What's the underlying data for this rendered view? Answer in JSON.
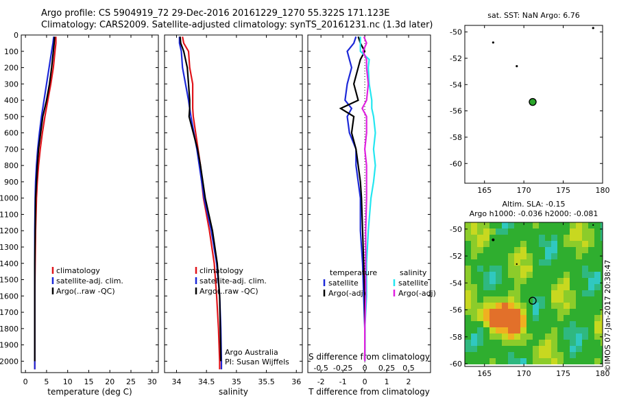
{
  "header": {
    "line1": "Argo profile: CS 5904919_72 29-Dec-2016 20161229_1270 55.322S 171.123E",
    "line2": "Climatology: CARS2009. Satellite-adjusted climatology: synTS_20161231.nc (1.3d later)"
  },
  "credit": "©IMOS 07-Jan-2017 20:38:47",
  "colors": {
    "climatology": "#e0141a",
    "satellite": "#1c28d8",
    "argo": "#000000",
    "satellite_salinity": "#22e6f0",
    "argo_salinity": "#e020e0"
  },
  "depth_ticks": [
    "0",
    "100",
    "200",
    "300",
    "400",
    "500",
    "600",
    "700",
    "800",
    "900",
    "1000",
    "1100",
    "1200",
    "1300",
    "1400",
    "1500",
    "1600",
    "1700",
    "1800",
    "1900",
    "2000"
  ],
  "chart_data": [
    {
      "type": "line",
      "id": "temperature",
      "xlabel": "temperature (deg C)",
      "ylabel": "",
      "xlim": [
        -1,
        31.5
      ],
      "ylim": [
        2070,
        0
      ],
      "x_ticks": [
        "0",
        "5",
        "10",
        "15",
        "20",
        "25",
        "30"
      ],
      "x_tick_values": [
        0,
        5,
        10,
        15,
        20,
        25,
        30
      ],
      "legend": [
        "climatology",
        "satellite-adj. clim.",
        "Argo(..raw -QC)"
      ],
      "depth": [
        10,
        50,
        100,
        200,
        300,
        400,
        500,
        600,
        700,
        800,
        900,
        1000,
        1200,
        1400,
        1600,
        1800,
        2000,
        2050
      ],
      "series": [
        {
          "name": "climatology",
          "color_key": "climatology",
          "values": [
            7.2,
            7.2,
            7.0,
            6.6,
            6.0,
            5.3,
            4.6,
            4.0,
            3.5,
            3.1,
            2.8,
            2.6,
            2.4,
            2.3,
            2.2,
            2.2,
            2.2,
            2.2
          ]
        },
        {
          "name": "satellite-adj. clim.",
          "color_key": "satellite",
          "values": [
            6.7,
            6.5,
            6.2,
            5.6,
            5.0,
            4.4,
            3.8,
            3.3,
            2.9,
            2.6,
            2.4,
            2.3,
            2.2,
            2.2,
            2.2,
            2.2,
            2.2,
            2.2
          ]
        },
        {
          "name": "Argo(..raw -QC)",
          "color_key": "argo",
          "values": [
            6.9,
            6.8,
            6.6,
            6.2,
            5.7,
            5.0,
            4.1,
            3.6,
            3.1,
            2.8,
            2.6,
            2.4,
            2.3,
            2.2,
            2.2,
            2.2,
            2.2,
            null
          ]
        }
      ]
    },
    {
      "type": "line",
      "id": "salinity",
      "xlabel": "salinity",
      "ylabel": "",
      "xlim": [
        33.8,
        36.1
      ],
      "ylim": [
        2070,
        0
      ],
      "x_ticks": [
        "34",
        "34.5",
        "35",
        "35.5",
        "36"
      ],
      "x_tick_values": [
        34,
        34.5,
        35,
        35.5,
        36
      ],
      "legend": [
        "climatology",
        "satellite-adj. clim.",
        "Argo(..raw -QC)"
      ],
      "annotation": [
        "Argo Australia",
        "PI: Susan Wijffels"
      ],
      "depth": [
        10,
        50,
        100,
        200,
        300,
        400,
        450,
        500,
        600,
        700,
        800,
        900,
        1000,
        1200,
        1400,
        1600,
        1800,
        2000,
        2050
      ],
      "series": [
        {
          "name": "climatology",
          "color_key": "climatology",
          "values": [
            34.1,
            34.12,
            34.2,
            34.22,
            34.27,
            34.27,
            34.27,
            34.28,
            34.32,
            34.36,
            34.4,
            34.42,
            34.45,
            34.55,
            34.63,
            34.67,
            34.7,
            34.72,
            34.72
          ]
        },
        {
          "name": "satellite-adj. clim.",
          "color_key": "satellite",
          "values": [
            34.05,
            34.05,
            34.08,
            34.1,
            34.15,
            34.2,
            34.22,
            34.24,
            34.29,
            34.34,
            34.38,
            34.42,
            34.46,
            34.58,
            34.67,
            34.72,
            34.74,
            34.75,
            34.75
          ]
        },
        {
          "name": "Argo(..raw -QC)",
          "color_key": "argo",
          "values": [
            34.06,
            34.07,
            34.12,
            34.18,
            34.2,
            34.22,
            34.22,
            34.21,
            34.28,
            34.35,
            34.4,
            34.44,
            34.48,
            34.6,
            34.68,
            34.72,
            34.73,
            34.74,
            null
          ]
        }
      ]
    },
    {
      "type": "line",
      "id": "differences",
      "xlabel": "T difference from climatology",
      "top_axis_label": "S difference from climatology",
      "xlim": [
        -2.6,
        3.0
      ],
      "ylim": [
        2070,
        0
      ],
      "x_ticks": [
        "-2",
        "-1",
        "0",
        "1",
        "2"
      ],
      "x_tick_values": [
        -2,
        -1,
        0,
        1,
        2
      ],
      "top_ticks": [
        "-0.5",
        "-0.25",
        "0",
        "0.25",
        "0.5"
      ],
      "legend_temperature": [
        "temperature",
        "satellite",
        "Argo(-adj)"
      ],
      "legend_salinity": [
        "salinity",
        "satellite",
        "Argo(-adj)"
      ],
      "depth": [
        10,
        50,
        100,
        150,
        200,
        300,
        400,
        450,
        500,
        600,
        700,
        800,
        900,
        1000,
        1200,
        1400,
        1600,
        1800,
        2000
      ],
      "series": [
        {
          "name": "temperature satellite",
          "color_key": "satellite",
          "values": [
            -0.4,
            -0.5,
            -0.8,
            -0.7,
            -0.6,
            -0.8,
            -0.9,
            -0.6,
            -0.8,
            -0.7,
            -0.4,
            -0.4,
            -0.3,
            -0.2,
            -0.2,
            -0.1,
            -0.05,
            0,
            0
          ]
        },
        {
          "name": "temperature Argo(-adj)",
          "color_key": "argo",
          "values": [
            -0.3,
            -0.2,
            0,
            -0.2,
            -0.3,
            -0.5,
            -0.3,
            -1.1,
            -0.5,
            -0.6,
            -0.4,
            -0.3,
            -0.2,
            -0.15,
            -0.1,
            -0.05,
            0,
            0,
            0
          ]
        },
        {
          "name": "salinity satellite",
          "color_key": "satellite_salinity",
          "values": [
            -0.05,
            -0.05,
            -0.05,
            0.05,
            0.04,
            0.05,
            0.08,
            0.08,
            0.1,
            0.12,
            0.1,
            0.12,
            0.1,
            0.07,
            0.04,
            0.02,
            0.02,
            0.0,
            0.0
          ]
        },
        {
          "name": "salinity Argo(-adj)",
          "color_key": "argo_salinity",
          "values": [
            -0.01,
            0.02,
            -0.02,
            0.02,
            0.02,
            0.04,
            0.02,
            -0.03,
            0.02,
            0.02,
            0.0,
            0.02,
            0.02,
            0.02,
            0.01,
            0.01,
            0.01,
            0.0,
            0.0
          ]
        }
      ]
    },
    {
      "type": "scatter",
      "id": "sst_map",
      "title": "sat. SST: NaN Argo: 6.76",
      "xlim": [
        162.5,
        180
      ],
      "ylim": [
        -61.5,
        -49.5
      ],
      "x_ticks": [
        "165",
        "170",
        "175",
        "180"
      ],
      "x_tick_values": [
        165,
        170,
        175,
        180
      ],
      "y_ticks": [
        "-50",
        "-52",
        "-54",
        "-56",
        "-58",
        "-60"
      ],
      "y_tick_values": [
        -50,
        -52,
        -54,
        -56,
        -58,
        -60
      ],
      "points": [
        {
          "lon": 171.12,
          "lat": -55.32,
          "kind": "profile"
        },
        {
          "lon": 166.1,
          "lat": -50.8,
          "kind": "land"
        },
        {
          "lon": 169.1,
          "lat": -52.6,
          "kind": "land"
        },
        {
          "lon": 178.8,
          "lat": -49.7,
          "kind": "land"
        }
      ]
    },
    {
      "type": "heatmap",
      "id": "sla_map",
      "title_line1": "Altim. SLA: -0.15",
      "title_line2": "Argo h1000: -0.036 h2000: -0.081",
      "xlim": [
        162.5,
        180
      ],
      "ylim": [
        -60.2,
        -49.5
      ],
      "x_ticks": [
        "165",
        "170",
        "175",
        "180"
      ],
      "x_tick_values": [
        165,
        170,
        175,
        180
      ],
      "y_ticks": [
        "-50",
        "-52",
        "-54",
        "-56",
        "-58",
        "-60"
      ],
      "y_tick_values": [
        -50,
        -52,
        -54,
        -56,
        -58,
        -60
      ],
      "profile": {
        "lon": 171.12,
        "lat": -55.32
      }
    }
  ]
}
